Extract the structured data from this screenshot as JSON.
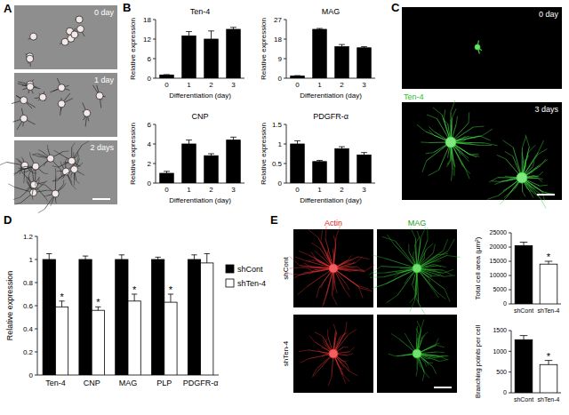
{
  "panel_labels": [
    "A",
    "B",
    "C",
    "D",
    "E"
  ],
  "panel_a": {
    "captions": [
      "0 day",
      "1 day",
      "2 days"
    ]
  },
  "panel_c": {
    "captions": [
      "0 day",
      "3 days"
    ],
    "stain": "Ten-4"
  },
  "panel_e": {
    "columns": [
      "Actin",
      "MAG"
    ],
    "rows": [
      "shCont",
      "shTen-4"
    ]
  },
  "chart_data": [
    {
      "type": "bar",
      "title": "Ten-4",
      "xlabel": "Differentiation (day)",
      "ylabel": "Relative expression",
      "categories": [
        0,
        1,
        2,
        3
      ],
      "values": [
        1,
        13,
        12,
        15
      ],
      "errors": [
        0.1,
        1.3,
        2.5,
        0.6
      ],
      "color": "#000000",
      "ylim": [
        0,
        18
      ],
      "yticks": [
        0,
        6,
        12,
        18
      ]
    },
    {
      "type": "bar",
      "title": "MAG",
      "xlabel": "Differentiation (day)",
      "ylabel": "Relative expression",
      "categories": [
        0,
        1,
        2,
        3
      ],
      "values": [
        1,
        22.5,
        14.5,
        14
      ],
      "errors": [
        0.2,
        0.4,
        1,
        0.5
      ],
      "color": "#000000",
      "ylim": [
        0,
        27
      ],
      "yticks": [
        0,
        9,
        18,
        27
      ]
    },
    {
      "type": "bar",
      "title": "CNP",
      "xlabel": "Differentiation (day)",
      "ylabel": "Relative expression",
      "categories": [
        0,
        1,
        2,
        3
      ],
      "values": [
        1,
        4,
        2.8,
        4.4
      ],
      "errors": [
        0.2,
        0.4,
        0.2,
        0.3
      ],
      "color": "#000000",
      "ylim": [
        0,
        6
      ],
      "yticks": [
        0,
        2,
        4,
        6
      ]
    },
    {
      "type": "bar",
      "title": "PDGFR-α",
      "xlabel": "Differentiation (day)",
      "ylabel": "Relative expression",
      "categories": [
        0,
        1,
        2,
        3
      ],
      "values": [
        1,
        0.55,
        0.88,
        0.72
      ],
      "errors": [
        0.08,
        0.03,
        0.05,
        0.06
      ],
      "color": "#000000",
      "ylim": [
        0,
        1.5
      ],
      "yticks": [
        0,
        0.5,
        1,
        1.5
      ]
    },
    {
      "type": "bar",
      "ylabel": "Relative expression",
      "legend": "right",
      "categories": [
        "Ten-4",
        "CNP",
        "MAG",
        "PLP",
        "PDGFR-α"
      ],
      "series": [
        {
          "name": "shCont",
          "color": "#000000",
          "values": [
            1,
            1,
            1,
            1,
            1
          ],
          "errors": [
            0.05,
            0.03,
            0.04,
            0.02,
            0.04
          ]
        },
        {
          "name": "shTen-4",
          "color": "#ffffff",
          "values": [
            0.59,
            0.56,
            0.64,
            0.63,
            0.97
          ],
          "errors": [
            0.05,
            0.03,
            0.06,
            0.07,
            0.08
          ],
          "significance": [
            "*",
            "*",
            "*",
            "*",
            null
          ]
        }
      ],
      "ylim": [
        0,
        1.2
      ],
      "yticks": [
        0,
        0.2,
        0.4,
        0.6,
        0.8,
        1,
        1.2
      ]
    },
    {
      "type": "bar",
      "ylabel": "Total cell area (µm²)",
      "categories": [
        "shCont",
        "shTen-4"
      ],
      "values": [
        20500,
        14000
      ],
      "errors": [
        1200,
        1000
      ],
      "colors": [
        "#000000",
        "#ffffff"
      ],
      "significance": [
        null,
        "*"
      ],
      "ylim": [
        0,
        25000
      ],
      "yticks": [
        0,
        5000,
        10000,
        15000,
        20000,
        25000
      ]
    },
    {
      "type": "bar",
      "ylabel": "Branching points per cell",
      "categories": [
        "shCont",
        "shTen-4"
      ],
      "values": [
        1280,
        680
      ],
      "errors": [
        100,
        100
      ],
      "colors": [
        "#000000",
        "#ffffff"
      ],
      "significance": [
        null,
        "*"
      ],
      "ylim": [
        0,
        1500
      ],
      "yticks": [
        0,
        500,
        1000,
        1500
      ]
    }
  ]
}
